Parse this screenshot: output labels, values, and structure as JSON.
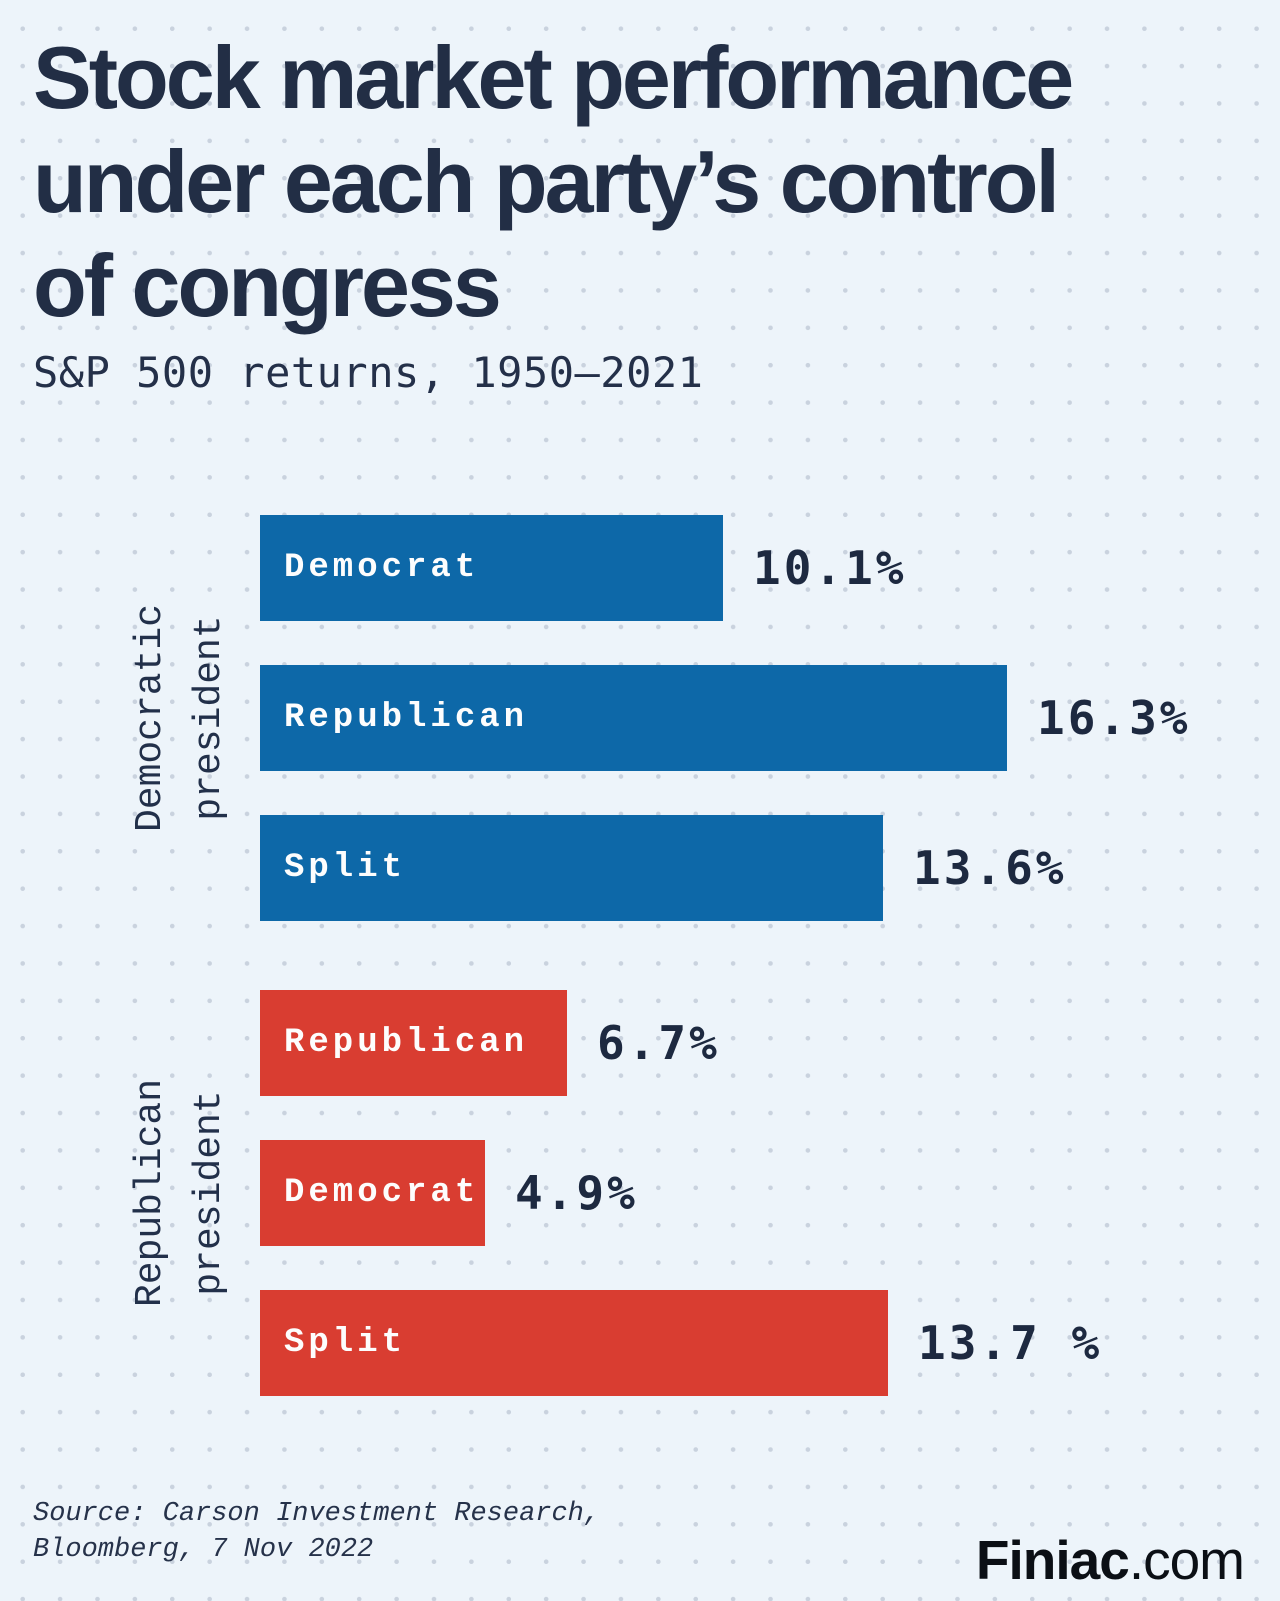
{
  "header": {
    "title_lines": [
      "Stock market performance",
      "under each party’s control",
      "of congress"
    ],
    "subtitle": "S&P 500 returns, 1950–2021"
  },
  "chart_data": {
    "type": "bar",
    "orientation": "horizontal",
    "title": "Stock market performance under each party’s control of congress",
    "subtitle": "S&P 500 returns, 1950–2021",
    "value_unit": "percent",
    "xlim": [
      0,
      16.3
    ],
    "legend_position": "none",
    "grid": "dotted background pattern",
    "groups": [
      {
        "group_label_lines": [
          "Democratic",
          "president"
        ],
        "color": "#0d68a8",
        "bars": [
          {
            "category": "Democrat",
            "value": 10.1,
            "display": "10.1%"
          },
          {
            "category": "Republican",
            "value": 16.3,
            "display": "16.3%"
          },
          {
            "category": "Split",
            "value": 13.6,
            "display": "13.6%"
          }
        ]
      },
      {
        "group_label_lines": [
          "Republican",
          "president"
        ],
        "color": "#d93d31",
        "bars": [
          {
            "category": "Republican",
            "value": 6.7,
            "display": "6.7%"
          },
          {
            "category": "Democrat",
            "value": 4.9,
            "display": "4.9%"
          },
          {
            "category": "Split",
            "value": 13.7,
            "display": "13.7 %"
          }
        ]
      }
    ]
  },
  "footer": {
    "source_lines": [
      "Source: Carson Investment Research,",
      "Bloomberg, 7 Nov 2022"
    ],
    "brand": {
      "name": "Finiac",
      "suffix": ".com"
    }
  },
  "colors": {
    "background": "#edf4fa",
    "dot_grid": "#c9d2de",
    "heading_text": "#222e45",
    "value_text": "#1d2940",
    "democrat_blue": "#0d68a8",
    "republican_red": "#d93d31",
    "bar_label_text": "#fdfdfd",
    "brand_text": "#0b0f15"
  }
}
